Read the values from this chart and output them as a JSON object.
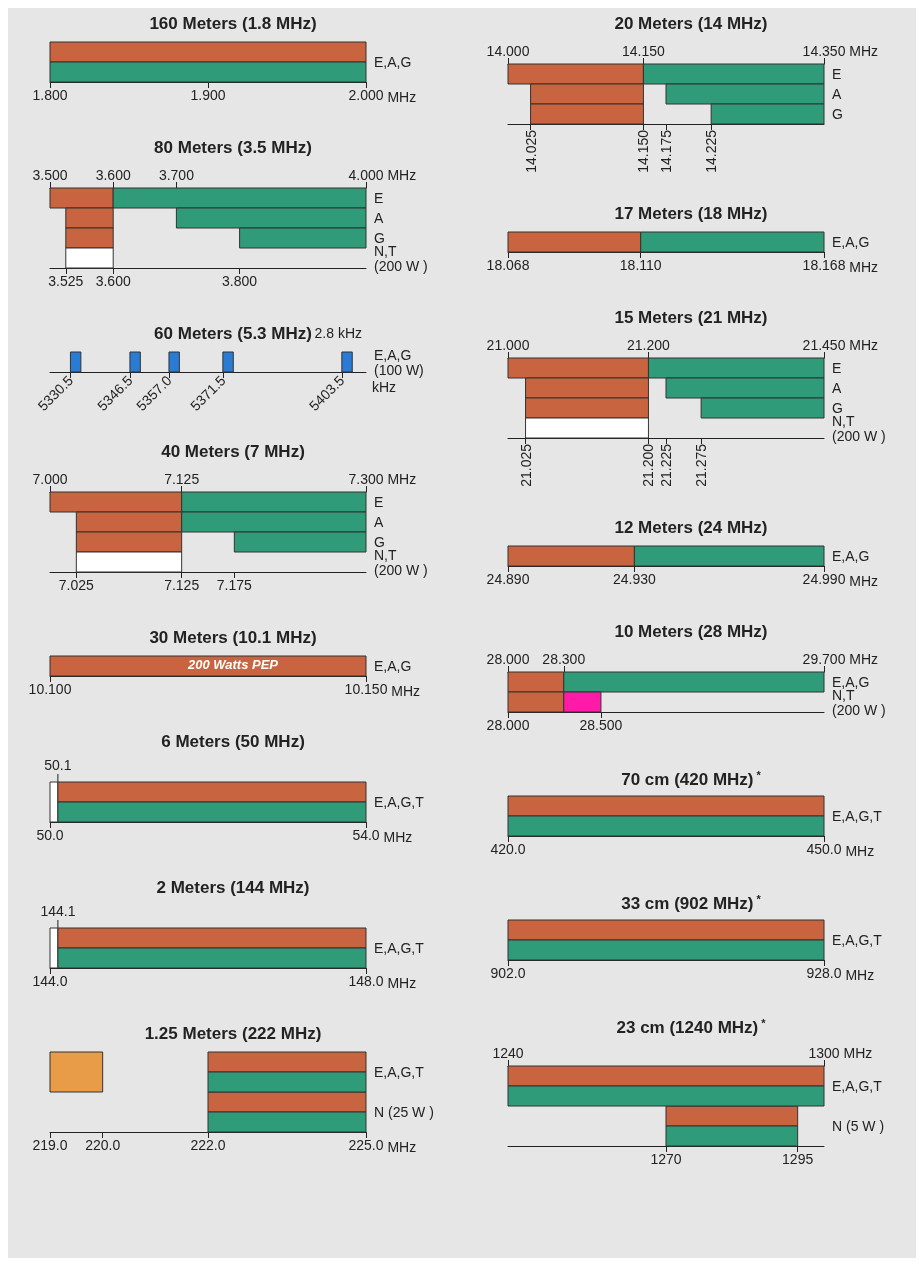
{
  "chart_data": [
    {
      "type": "bar",
      "orientation": "horizontal",
      "title": "160 Meters (1.8 MHz)",
      "categories": [
        "E,A,G"
      ],
      "xlim": [
        1.8,
        2.0
      ],
      "xticks": [
        {
          "value": 1.8,
          "label": "1.800"
        },
        {
          "value": 1.9,
          "label": "1.900"
        },
        {
          "value": 2.0,
          "label": "2.000"
        }
      ],
      "xlabel": "MHz",
      "series": [
        {
          "color": "#c8643f",
          "base": [
            1.8
          ],
          "values": [
            0.2
          ]
        },
        {
          "color": "#2f9b78",
          "base": [
            1.8
          ],
          "values": [
            0.2
          ]
        }
      ]
    },
    {
      "type": "bar",
      "orientation": "horizontal",
      "title": "80 Meters (3.5 MHz)",
      "categories": [
        "E",
        "A",
        "G",
        "N,T\n(200 W )"
      ],
      "xlim": [
        3.5,
        4.0
      ],
      "x2lim": [
        3.5,
        4.0
      ],
      "x2ticks": [
        {
          "value": 3.5,
          "label": "3.500"
        },
        {
          "value": 3.6,
          "label": "3.600"
        },
        {
          "value": 3.7,
          "label": "3.700"
        },
        {
          "value": 4.0,
          "label": "4.000"
        }
      ],
      "x2label": "MHz",
      "xticks": [
        {
          "value": 3.525,
          "label": "3.525"
        },
        {
          "value": 3.6,
          "label": "3.600"
        },
        {
          "value": 3.8,
          "label": "3.800"
        }
      ],
      "series": [
        {
          "color": "#c8643f",
          "base": [
            3.5,
            3.525,
            3.525,
            null
          ],
          "values": [
            0.1,
            0.075,
            0.075,
            null
          ]
        },
        {
          "color": "#2f9b78",
          "base": [
            3.6,
            3.7,
            3.8,
            null
          ],
          "values": [
            0.4,
            0.3,
            0.2,
            null
          ]
        },
        {
          "color": "#ffffff",
          "base": [
            null,
            null,
            null,
            3.525
          ],
          "values": [
            null,
            null,
            null,
            0.075
          ]
        }
      ]
    },
    {
      "type": "bar",
      "orientation": "horizontal",
      "title": "60 Meters (5.3 MHz)",
      "categories": [
        "E,A,G\n(100 W)"
      ],
      "xlim": [
        5325,
        5410
      ],
      "xticks": [
        {
          "value": 5330.5,
          "label": "5330.5"
        },
        {
          "value": 5346.5,
          "label": "5346.5"
        },
        {
          "value": 5357,
          "label": "5357.0"
        },
        {
          "value": 5371.5,
          "label": "5371.5"
        },
        {
          "value": 5403.5,
          "label": "5403.5"
        }
      ],
      "xlabel": "kHz",
      "annotations": [
        "2.8 kHz"
      ],
      "series": [
        {
          "color": "#2a7bd4",
          "base": [
            5330.5
          ],
          "values": [
            2.8
          ]
        },
        {
          "color": "#2a7bd4",
          "base": [
            5346.5
          ],
          "values": [
            2.8
          ]
        },
        {
          "color": "#2a7bd4",
          "base": [
            5357
          ],
          "values": [
            2.8
          ]
        },
        {
          "color": "#2a7bd4",
          "base": [
            5371.5
          ],
          "values": [
            2.8
          ]
        },
        {
          "color": "#2a7bd4",
          "base": [
            5403.5
          ],
          "values": [
            2.8
          ]
        }
      ]
    },
    {
      "type": "bar",
      "orientation": "horizontal",
      "title": "40 Meters (7 MHz)",
      "categories": [
        "E",
        "A",
        "G",
        "N,T\n(200 W )"
      ],
      "xlim": [
        7.0,
        7.3
      ],
      "x2lim": [
        7.0,
        7.3
      ],
      "x2ticks": [
        {
          "value": 7.0,
          "label": "7.000"
        },
        {
          "value": 7.125,
          "label": "7.125"
        },
        {
          "value": 7.3,
          "label": "7.300"
        }
      ],
      "x2label": "MHz",
      "xticks": [
        {
          "value": 7.025,
          "label": "7.025"
        },
        {
          "value": 7.125,
          "label": "7.125"
        },
        {
          "value": 7.175,
          "label": "7.175"
        }
      ],
      "series": [
        {
          "color": "#c8643f",
          "base": [
            7.0,
            7.025,
            7.025,
            null
          ],
          "values": [
            0.125,
            0.1,
            0.1,
            null
          ]
        },
        {
          "color": "#2f9b78",
          "base": [
            7.125,
            7.125,
            7.175,
            null
          ],
          "values": [
            0.175,
            0.175,
            0.125,
            null
          ]
        },
        {
          "color": "#ffffff",
          "base": [
            null,
            null,
            null,
            7.025
          ],
          "values": [
            null,
            null,
            null,
            0.1
          ]
        }
      ]
    },
    {
      "type": "bar",
      "orientation": "horizontal",
      "title": "30 Meters (10.1 MHz)",
      "categories": [
        "E,A,G"
      ],
      "xlim": [
        10.1,
        10.15
      ],
      "xticks": [
        {
          "value": 10.1,
          "label": "10.100"
        },
        {
          "value": 10.15,
          "label": "10.150"
        }
      ],
      "xlabel": "MHz",
      "annotations": [
        "200 Watts PEP"
      ],
      "series": [
        {
          "color": "#c8643f",
          "base": [
            10.1
          ],
          "values": [
            0.05
          ]
        }
      ]
    },
    {
      "type": "bar",
      "orientation": "horizontal",
      "title": "6 Meters (50 MHz)",
      "categories": [
        "E,A,G,T"
      ],
      "xlim": [
        50,
        54
      ],
      "xticks": [
        {
          "value": 50,
          "label": "50.0"
        },
        {
          "value": 54,
          "label": "54.0"
        }
      ],
      "xlabel": "MHz",
      "ref_lines": [
        {
          "axis": "x",
          "value": 50.1,
          "label": "50.1"
        }
      ],
      "series": [
        {
          "color": "#ffffff",
          "base": [
            50
          ],
          "values": [
            0.1
          ]
        },
        {
          "color": "#c8643f",
          "base": [
            50.1
          ],
          "values": [
            3.9
          ]
        },
        {
          "color": "#2f9b78",
          "base": [
            50.1
          ],
          "values": [
            3.9
          ]
        }
      ]
    },
    {
      "type": "bar",
      "orientation": "horizontal",
      "title": "2 Meters (144 MHz)",
      "categories": [
        "E,A,G,T"
      ],
      "xlim": [
        144,
        148
      ],
      "xticks": [
        {
          "value": 144,
          "label": "144.0"
        },
        {
          "value": 148,
          "label": "148.0"
        }
      ],
      "xlabel": "MHz",
      "ref_lines": [
        {
          "axis": "x",
          "value": 144.1,
          "label": "144.1"
        }
      ],
      "series": [
        {
          "color": "#ffffff",
          "base": [
            144
          ],
          "values": [
            0.1
          ]
        },
        {
          "color": "#c8643f",
          "base": [
            144.1
          ],
          "values": [
            3.9
          ]
        },
        {
          "color": "#2f9b78",
          "base": [
            144.1
          ],
          "values": [
            3.9
          ]
        }
      ]
    },
    {
      "type": "bar",
      "orientation": "horizontal",
      "title": "1.25 Meters (222 MHz)",
      "categories": [
        "E,A,G,T",
        "N (25 W )"
      ],
      "xlim": [
        219,
        225
      ],
      "xticks": [
        {
          "value": 219,
          "label": "219.0"
        },
        {
          "value": 220,
          "label": "220.0"
        },
        {
          "value": 222,
          "label": "222.0"
        },
        {
          "value": 225,
          "label": "225.0"
        }
      ],
      "xlabel": "MHz",
      "series": [
        {
          "color": "#e89c48",
          "base": [
            219,
            null
          ],
          "values": [
            1,
            null
          ]
        },
        {
          "color": "#c8643f",
          "base": [
            222,
            222
          ],
          "values": [
            3,
            3
          ]
        },
        {
          "color": "#2f9b78",
          "base": [
            222,
            222
          ],
          "values": [
            3,
            3
          ]
        }
      ]
    },
    {
      "type": "bar",
      "orientation": "horizontal",
      "title": "20 Meters (14 MHz)",
      "categories": [
        "E",
        "A",
        "G"
      ],
      "xlim": [
        14.0,
        14.35
      ],
      "x2lim": [
        14.0,
        14.35
      ],
      "x2ticks": [
        {
          "value": 14.0,
          "label": "14.000"
        },
        {
          "value": 14.15,
          "label": "14.150"
        },
        {
          "value": 14.35,
          "label": "14.350"
        }
      ],
      "x2label": "MHz",
      "xticks": [
        {
          "value": 14.025,
          "label": "14.025"
        },
        {
          "value": 14.15,
          "label": "14.150"
        },
        {
          "value": 14.175,
          "label": "14.175"
        },
        {
          "value": 14.225,
          "label": "14.225"
        }
      ],
      "series": [
        {
          "color": "#c8643f",
          "base": [
            14.0,
            14.025,
            14.025
          ],
          "values": [
            0.15,
            0.125,
            0.125
          ]
        },
        {
          "color": "#2f9b78",
          "base": [
            14.15,
            14.175,
            14.225
          ],
          "values": [
            0.2,
            0.175,
            0.125
          ]
        }
      ]
    },
    {
      "type": "bar",
      "orientation": "horizontal",
      "title": "17 Meters (18 MHz)",
      "categories": [
        "E,A,G"
      ],
      "xlim": [
        18.068,
        18.168
      ],
      "xticks": [
        {
          "value": 18.068,
          "label": "18.068"
        },
        {
          "value": 18.11,
          "label": "18.110"
        },
        {
          "value": 18.168,
          "label": "18.168"
        }
      ],
      "xlabel": "MHz",
      "series": [
        {
          "color": "#c8643f",
          "base": [
            18.068
          ],
          "values": [
            0.042
          ]
        },
        {
          "color": "#2f9b78",
          "base": [
            18.11
          ],
          "values": [
            0.058
          ]
        }
      ]
    },
    {
      "type": "bar",
      "orientation": "horizontal",
      "title": "15 Meters (21 MHz)",
      "categories": [
        "E",
        "A",
        "G",
        "N,T\n(200 W )"
      ],
      "xlim": [
        21.0,
        21.45
      ],
      "x2lim": [
        21.0,
        21.45
      ],
      "x2ticks": [
        {
          "value": 21.0,
          "label": "21.000"
        },
        {
          "value": 21.2,
          "label": "21.200"
        },
        {
          "value": 21.45,
          "label": "21.450"
        }
      ],
      "x2label": "MHz",
      "xticks": [
        {
          "value": 21.025,
          "label": "21.025"
        },
        {
          "value": 21.2,
          "label": "21.200"
        },
        {
          "value": 21.225,
          "label": "21.225"
        },
        {
          "value": 21.275,
          "label": "21.275"
        }
      ],
      "series": [
        {
          "color": "#c8643f",
          "base": [
            21.0,
            21.025,
            21.025,
            null
          ],
          "values": [
            0.2,
            0.175,
            0.175,
            null
          ]
        },
        {
          "color": "#2f9b78",
          "base": [
            21.2,
            21.225,
            21.275,
            null
          ],
          "values": [
            0.25,
            0.225,
            0.175,
            null
          ]
        },
        {
          "color": "#ffffff",
          "base": [
            null,
            null,
            null,
            21.025
          ],
          "values": [
            null,
            null,
            null,
            0.175
          ]
        }
      ]
    },
    {
      "type": "bar",
      "orientation": "horizontal",
      "title": "12 Meters (24 MHz)",
      "categories": [
        "E,A,G"
      ],
      "xlim": [
        24.89,
        24.99
      ],
      "xticks": [
        {
          "value": 24.89,
          "label": "24.890"
        },
        {
          "value": 24.93,
          "label": "24.930"
        },
        {
          "value": 24.99,
          "label": "24.990"
        }
      ],
      "xlabel": "MHz",
      "series": [
        {
          "color": "#c8643f",
          "base": [
            24.89
          ],
          "values": [
            0.04
          ]
        },
        {
          "color": "#2f9b78",
          "base": [
            24.93
          ],
          "values": [
            0.06
          ]
        }
      ]
    },
    {
      "type": "bar",
      "orientation": "horizontal",
      "title": "10 Meters (28 MHz)",
      "categories": [
        "E,A,G",
        "N,T\n(200 W )"
      ],
      "xlim": [
        28.0,
        29.7
      ],
      "x2lim": [
        28.0,
        29.7
      ],
      "x2ticks": [
        {
          "value": 28.0,
          "label": "28.000"
        },
        {
          "value": 28.3,
          "label": "28.300"
        },
        {
          "value": 29.7,
          "label": "29.700"
        }
      ],
      "x2label": "MHz",
      "xticks": [
        {
          "value": 28.0,
          "label": "28.000"
        },
        {
          "value": 28.5,
          "label": "28.500"
        }
      ],
      "series": [
        {
          "color": "#c8643f",
          "base": [
            28.0,
            28.0
          ],
          "values": [
            0.3,
            0.3
          ]
        },
        {
          "color": "#2f9b78",
          "base": [
            28.3,
            null
          ],
          "values": [
            1.4,
            null
          ]
        },
        {
          "color": "#ff1aa8",
          "base": [
            null,
            28.3
          ],
          "values": [
            null,
            0.2
          ]
        }
      ]
    },
    {
      "type": "bar",
      "orientation": "horizontal",
      "title": "70 cm (420 MHz)$^{*}$",
      "categories": [
        "E,A,G,T"
      ],
      "xlim": [
        420,
        450
      ],
      "xticks": [
        {
          "value": 420,
          "label": "420.0"
        },
        {
          "value": 450,
          "label": "450.0"
        }
      ],
      "xlabel": "MHz",
      "series": [
        {
          "color": "#c8643f",
          "base": [
            420
          ],
          "values": [
            30
          ]
        },
        {
          "color": "#2f9b78",
          "base": [
            420
          ],
          "values": [
            30
          ]
        }
      ]
    },
    {
      "type": "bar",
      "orientation": "horizontal",
      "title": "33 cm (902 MHz)$^{*}$",
      "categories": [
        "E,A,G,T"
      ],
      "xlim": [
        902,
        928
      ],
      "xticks": [
        {
          "value": 902,
          "label": "902.0"
        },
        {
          "value": 928,
          "label": "928.0"
        }
      ],
      "xlabel": "MHz",
      "series": [
        {
          "color": "#c8643f",
          "base": [
            902
          ],
          "values": [
            26
          ]
        },
        {
          "color": "#2f9b78",
          "base": [
            902
          ],
          "values": [
            26
          ]
        }
      ]
    },
    {
      "type": "bar",
      "orientation": "horizontal",
      "title": "23 cm (1240 MHz)$^{*}$",
      "categories": [
        "E,A,G,T",
        "N (5 W )"
      ],
      "xlim": [
        1240,
        1300
      ],
      "x2lim": [
        1240,
        1300
      ],
      "x2ticks": [
        1240,
        1300
      ],
      "x2label": "MHz",
      "xticks": [
        1270,
        1295
      ],
      "series": [
        {
          "color": "#c8643f",
          "base": [
            1240,
            1270
          ],
          "values": [
            60,
            25
          ]
        },
        {
          "color": "#2f9b78",
          "base": [
            1240,
            1270
          ],
          "values": [
            60,
            25
          ]
        }
      ]
    }
  ]
}
